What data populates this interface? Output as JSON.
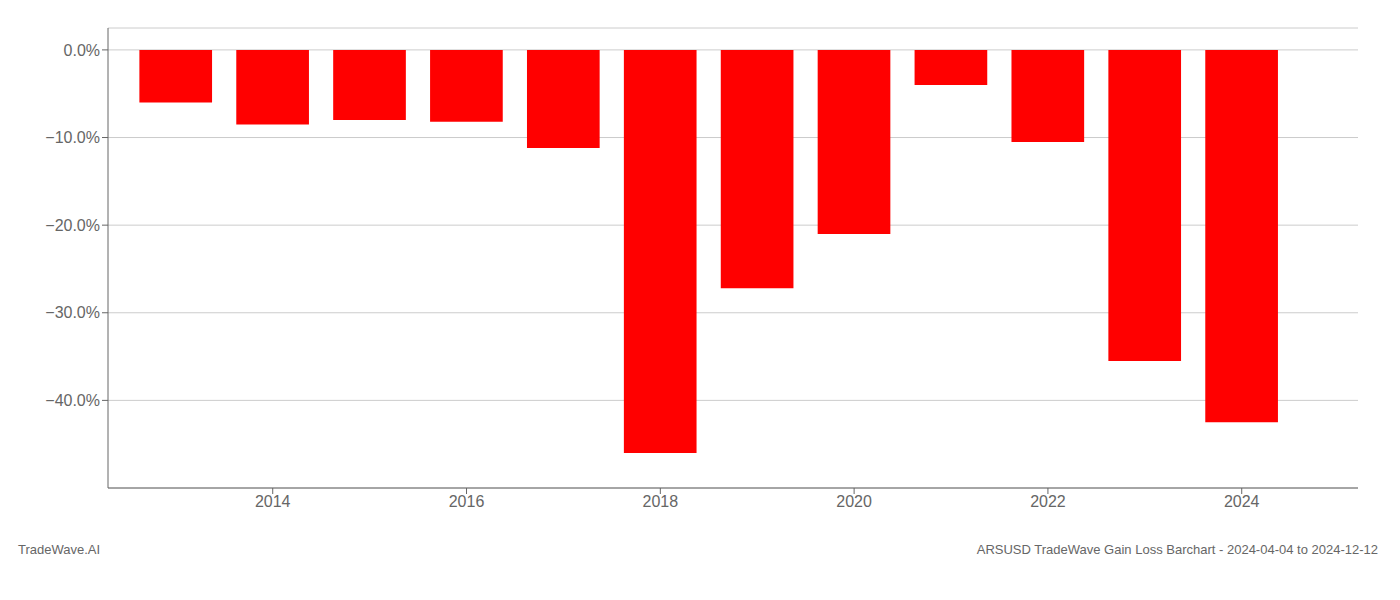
{
  "chart_data": {
    "type": "bar",
    "x": [
      2013,
      2014,
      2015,
      2016,
      2017,
      2018,
      2019,
      2020,
      2021,
      2022,
      2023,
      2024
    ],
    "values": [
      -0.06,
      -0.085,
      -0.08,
      -0.082,
      -0.112,
      -0.46,
      -0.272,
      -0.21,
      -0.04,
      -0.105,
      -0.355,
      -0.425
    ],
    "color": "#ff0000",
    "xlim": [
      2012.3,
      2025.2
    ],
    "xticks": [
      2014,
      2016,
      2018,
      2020,
      2022,
      2024
    ],
    "ylim": [
      -0.5,
      0.025
    ],
    "yticks": [
      {
        "value": 0.0,
        "label": "0.0%"
      },
      {
        "value": -0.1,
        "label": "−10.0%"
      },
      {
        "value": -0.2,
        "label": "−20.0%"
      },
      {
        "value": -0.3,
        "label": "−30.0%"
      },
      {
        "value": -0.4,
        "label": "−40.0%"
      }
    ],
    "grid": true,
    "annotations": [
      "TradeWave.AI",
      "ARSUSD TradeWave Gain Loss Barchart - 2024-04-04 to 2024-12-12"
    ]
  }
}
